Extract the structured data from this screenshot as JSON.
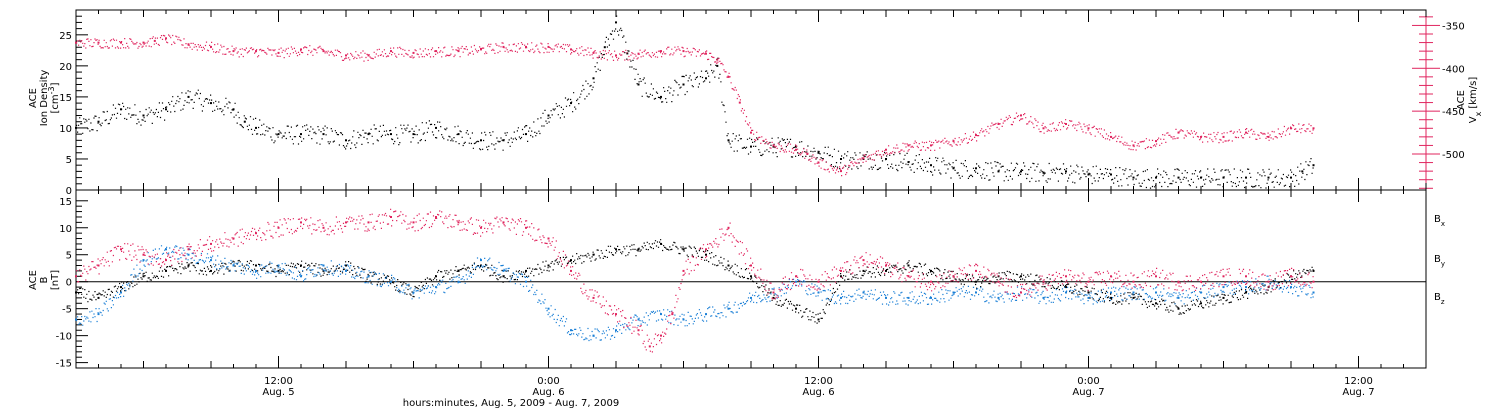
{
  "chart_data": [
    {
      "type": "scatter",
      "panel": "top",
      "title": "",
      "x_axis": {
        "label": "hours:minutes, Aug. 5, 2009 - Aug. 7, 2009",
        "tick_labels": [
          [
            "12:00",
            "Aug. 5"
          ],
          [
            "0:00",
            "Aug. 6"
          ],
          [
            "12:00",
            "Aug. 6"
          ],
          [
            "0:00",
            "Aug. 7"
          ],
          [
            "12:00",
            "Aug. 7"
          ]
        ],
        "tick_hours": [
          12,
          24,
          36,
          48,
          60
        ],
        "range_hours": [
          3,
          63
        ]
      },
      "left_axis": {
        "label_lines": [
          "ACE",
          "Ion Density",
          "[cm-3]"
        ],
        "label_parts": {
          "l1": "ACE",
          "l2": "Ion Density",
          "l3a": "[cm",
          "l3sup": "-3",
          "l3b": "]"
        },
        "ylim": [
          0,
          29
        ],
        "ticks": [
          0,
          5,
          10,
          15,
          20,
          25
        ],
        "tick_labels": [
          "0",
          "5",
          "10",
          "15",
          "20",
          "25"
        ],
        "color": "#000000"
      },
      "right_axis": {
        "label_lines": [
          "ACE",
          "Vx [km/s]"
        ],
        "label_parts": {
          "l1": "ACE",
          "l2a": "V",
          "l2sub": "x",
          "l2b": "[km/s]"
        },
        "ylim": [
          -542,
          -332
        ],
        "ticks": [
          -350,
          -400,
          -450,
          -500
        ],
        "tick_labels": [
          "-350",
          "-400",
          "-450",
          "-500"
        ],
        "color": "#e0245e"
      },
      "series": [
        {
          "name": "Ion Density",
          "color": "#000000",
          "axis": "left",
          "x_hours": [
            3.0,
            4.0,
            5.0,
            6.0,
            7.0,
            8.0,
            9.0,
            10.0,
            10.5,
            11.0,
            12.0,
            13.0,
            14.0,
            15.0,
            16.0,
            17.0,
            18.0,
            19.0,
            20.0,
            21.0,
            22.0,
            23.0,
            24.0,
            25.0,
            26.0,
            26.5,
            27.0,
            27.5,
            28.0,
            29.0,
            30.0,
            31.0,
            31.5,
            32.0,
            33.0,
            34.0,
            35.0,
            36.0,
            37.0,
            38.0,
            39.0,
            40.0,
            41.0,
            42.0,
            43.0,
            44.0,
            45.0,
            46.0,
            47.0,
            48.0,
            49.0,
            50.0,
            51.0,
            52.0,
            53.0,
            54.0,
            55.0,
            56.0,
            57.0,
            57.5,
            58.0
          ],
          "values": [
            10,
            11,
            13,
            12,
            13,
            15,
            14,
            13,
            11,
            10,
            9,
            9,
            9,
            8,
            9,
            9,
            9,
            10,
            9,
            8,
            8,
            9,
            12,
            14,
            18,
            23,
            27,
            22,
            17,
            15,
            17,
            18,
            20,
            8,
            7,
            7,
            7,
            6,
            5,
            5,
            5,
            4.5,
            4,
            3.5,
            3.5,
            3,
            3,
            2.8,
            3,
            2.5,
            2.5,
            2,
            2,
            2,
            2,
            2,
            2,
            2,
            2,
            3,
            4
          ]
        },
        {
          "name": "Vx",
          "color": "#e0245e",
          "axis": "right",
          "x_hours": [
            3.0,
            4.0,
            5.0,
            6.0,
            6.5,
            7.0,
            8.0,
            9.0,
            10.0,
            11.0,
            12.0,
            13.0,
            14.0,
            15.0,
            16.0,
            17.0,
            18.0,
            19.0,
            20.0,
            21.0,
            22.0,
            23.0,
            24.0,
            25.0,
            26.0,
            27.0,
            28.0,
            29.0,
            30.0,
            31.0,
            31.5,
            32.0,
            32.5,
            33.0,
            34.0,
            35.0,
            35.5,
            36.0,
            37.0,
            38.0,
            39.0,
            40.0,
            41.0,
            42.0,
            43.0,
            44.0,
            45.0,
            46.0,
            47.0,
            48.0,
            49.0,
            50.0,
            51.0,
            52.0,
            53.0,
            54.0,
            55.0,
            56.0,
            57.0,
            58.0
          ],
          "values": [
            -370,
            -370,
            -370,
            -370,
            -368,
            -365,
            -372,
            -375,
            -380,
            -380,
            -382,
            -378,
            -380,
            -385,
            -385,
            -380,
            -382,
            -380,
            -380,
            -378,
            -375,
            -375,
            -375,
            -378,
            -382,
            -385,
            -383,
            -380,
            -380,
            -383,
            -390,
            -410,
            -440,
            -475,
            -490,
            -495,
            -500,
            -510,
            -520,
            -505,
            -495,
            -490,
            -490,
            -485,
            -478,
            -465,
            -455,
            -470,
            -465,
            -470,
            -480,
            -490,
            -485,
            -475,
            -480,
            -480,
            -475,
            -480,
            -470,
            -470
          ]
        }
      ]
    },
    {
      "type": "scatter",
      "panel": "bottom",
      "title": "",
      "x_axis": {
        "label": "hours:minutes, Aug. 5, 2009 - Aug. 7, 2009",
        "range_hours": [
          3,
          63
        ]
      },
      "left_axis": {
        "label_lines": [
          "ACE",
          "B",
          "[nT]"
        ],
        "label_parts": {
          "l1": "ACE",
          "l2": "B",
          "l3": "[nT]"
        },
        "ylim": [
          -16,
          17
        ],
        "ticks": [
          15,
          10,
          5,
          0,
          -5,
          -10,
          -15
        ],
        "tick_labels": [
          "15",
          "10",
          "5",
          "0",
          "-5",
          "-10",
          "-15"
        ],
        "zero_line": true
      },
      "legend": {
        "placement": "right",
        "entries": [
          {
            "base": "B",
            "sub": "x",
            "color": "#000000"
          },
          {
            "base": "B",
            "sub": "y",
            "color": "#1a7fd6"
          },
          {
            "base": "B",
            "sub": "z",
            "color": "#e0245e"
          }
        ]
      },
      "series": [
        {
          "name": "Bx",
          "color": "#000000",
          "x_hours": [
            3.0,
            4.0,
            5.0,
            6.0,
            7.0,
            8.0,
            9.0,
            10.0,
            11.0,
            12.0,
            13.0,
            14.0,
            15.0,
            16.0,
            17.0,
            18.0,
            19.0,
            20.0,
            21.0,
            22.0,
            23.0,
            24.0,
            25.0,
            26.0,
            27.0,
            28.0,
            29.0,
            30.0,
            31.0,
            32.0,
            33.0,
            34.0,
            35.0,
            36.0,
            37.0,
            38.0,
            39.0,
            40.0,
            41.0,
            42.0,
            43.0,
            44.0,
            45.0,
            46.0,
            47.0,
            48.0,
            49.0,
            50.0,
            51.0,
            52.0,
            53.0,
            54.0,
            55.0,
            56.0,
            57.0,
            58.0
          ],
          "values": [
            -2,
            -3,
            -1,
            1,
            2,
            3,
            2,
            3,
            3,
            2,
            3,
            2,
            3,
            1,
            0,
            -2,
            1,
            2,
            3,
            1,
            2,
            3,
            4,
            5,
            6,
            6,
            7,
            6,
            5,
            3,
            1,
            -3,
            -5,
            -7,
            1,
            2,
            2,
            3,
            2,
            1,
            0,
            1,
            1,
            0,
            -1,
            -2,
            -3,
            -3,
            -4,
            -5,
            -4,
            -3,
            -2,
            -1,
            1,
            2
          ]
        },
        {
          "name": "By",
          "color": "#1a7fd6",
          "x_hours": [
            3.0,
            4.0,
            5.0,
            6.0,
            7.0,
            8.0,
            9.0,
            10.0,
            11.0,
            12.0,
            13.0,
            14.0,
            15.0,
            16.0,
            17.0,
            18.0,
            19.0,
            20.0,
            21.0,
            22.0,
            23.0,
            24.0,
            25.0,
            26.0,
            27.0,
            28.0,
            29.0,
            30.0,
            31.0,
            32.0,
            33.0,
            34.0,
            35.0,
            36.0,
            37.0,
            38.0,
            39.0,
            40.0,
            41.0,
            42.0,
            43.0,
            44.0,
            45.0,
            46.0,
            47.0,
            48.0,
            49.0,
            50.0,
            51.0,
            52.0,
            53.0,
            54.0,
            55.0,
            56.0,
            57.0,
            58.0
          ],
          "values": [
            -7,
            -6,
            -2,
            4,
            6,
            5,
            4,
            3,
            2,
            3,
            1,
            3,
            2,
            1,
            0,
            -2,
            -1,
            0,
            4,
            2,
            0,
            -5,
            -9,
            -10,
            -9,
            -7,
            -6,
            -7,
            -6,
            -5,
            -3,
            -2,
            0,
            -2,
            -3,
            -2,
            -3,
            -3,
            -3,
            -2,
            -2,
            -3,
            -2,
            -3,
            -2,
            -3,
            -2,
            -2,
            -2,
            -3,
            -2,
            -1,
            -1,
            0,
            -1,
            -2
          ]
        },
        {
          "name": "Bz",
          "color": "#e0245e",
          "x_hours": [
            3.0,
            4.0,
            5.0,
            6.0,
            7.0,
            8.0,
            9.0,
            10.0,
            11.0,
            12.0,
            13.0,
            14.0,
            15.0,
            16.0,
            17.0,
            18.0,
            19.0,
            20.0,
            21.0,
            22.0,
            23.0,
            24.0,
            25.0,
            26.0,
            27.0,
            28.0,
            28.5,
            29.0,
            29.5,
            30.0,
            31.0,
            32.0,
            33.0,
            34.0,
            35.0,
            36.0,
            37.0,
            38.0,
            39.0,
            40.0,
            41.0,
            42.0,
            43.0,
            44.0,
            45.0,
            46.0,
            47.0,
            48.0,
            49.0,
            50.0,
            51.0,
            52.0,
            53.0,
            54.0,
            55.0,
            56.0,
            57.0,
            58.0
          ],
          "values": [
            1,
            3,
            6,
            5,
            4,
            6,
            7,
            8,
            9,
            10,
            11,
            10,
            11,
            11,
            12,
            11,
            12,
            11,
            10,
            11,
            10,
            8,
            2,
            -3,
            -6,
            -9,
            -12,
            -10,
            -6,
            2,
            6,
            10,
            3,
            -2,
            1,
            0,
            2,
            4,
            3,
            1,
            0,
            1,
            2,
            0,
            -2,
            0,
            1,
            0,
            1,
            0,
            1,
            0,
            0,
            1,
            1,
            0,
            1,
            0
          ]
        }
      ]
    }
  ]
}
